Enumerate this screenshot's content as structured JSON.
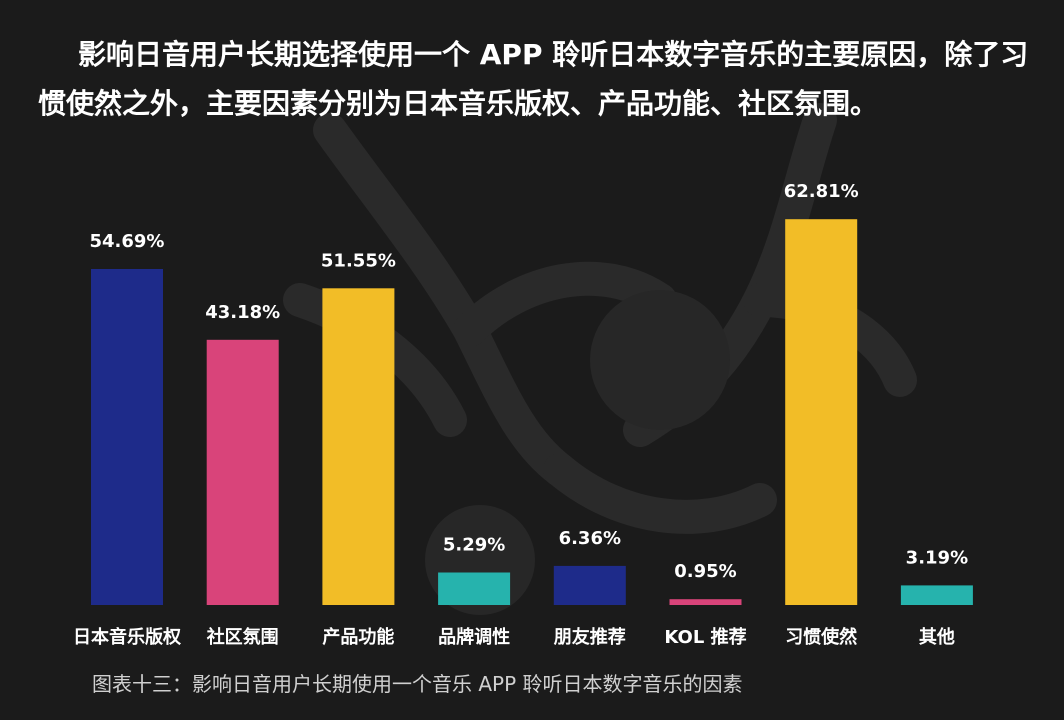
{
  "intro_text": "影响日音用户长期选择使用一个 APP 聆听日本数字音乐的主要原因，除了习惯使然之外，主要因素分别为日本音乐版权、产品功能、社区氛围。",
  "caption": "图表十三：影响日音用户长期使用一个音乐 APP 聆听日本数字音乐的因素",
  "colors": {
    "background": "#1b1b1b",
    "navy": "#1e2b8a",
    "pink": "#d9447a",
    "yellow": "#f2bd27",
    "teal": "#26b3ad",
    "text": "#ffffff"
  },
  "chart_data": {
    "type": "bar",
    "title": "",
    "xlabel": "",
    "ylabel": "",
    "ylim": [
      0,
      70
    ],
    "grid": false,
    "categories": [
      "日本音乐版权",
      "社区氛围",
      "产品功能",
      "品牌调性",
      "朋友推荐",
      "KOL 推荐",
      "习惯使然",
      "其他"
    ],
    "values": [
      54.69,
      43.18,
      51.55,
      5.29,
      6.36,
      0.95,
      62.81,
      3.19
    ],
    "value_labels": [
      "54.69%",
      "43.18%",
      "51.55%",
      "5.29%",
      "6.36%",
      "0.95%",
      "62.81%",
      "3.19%"
    ],
    "bar_colors": [
      "#1e2b8a",
      "#d9447a",
      "#f2bd27",
      "#26b3ad",
      "#1e2b8a",
      "#d9447a",
      "#f2bd27",
      "#26b3ad"
    ]
  }
}
